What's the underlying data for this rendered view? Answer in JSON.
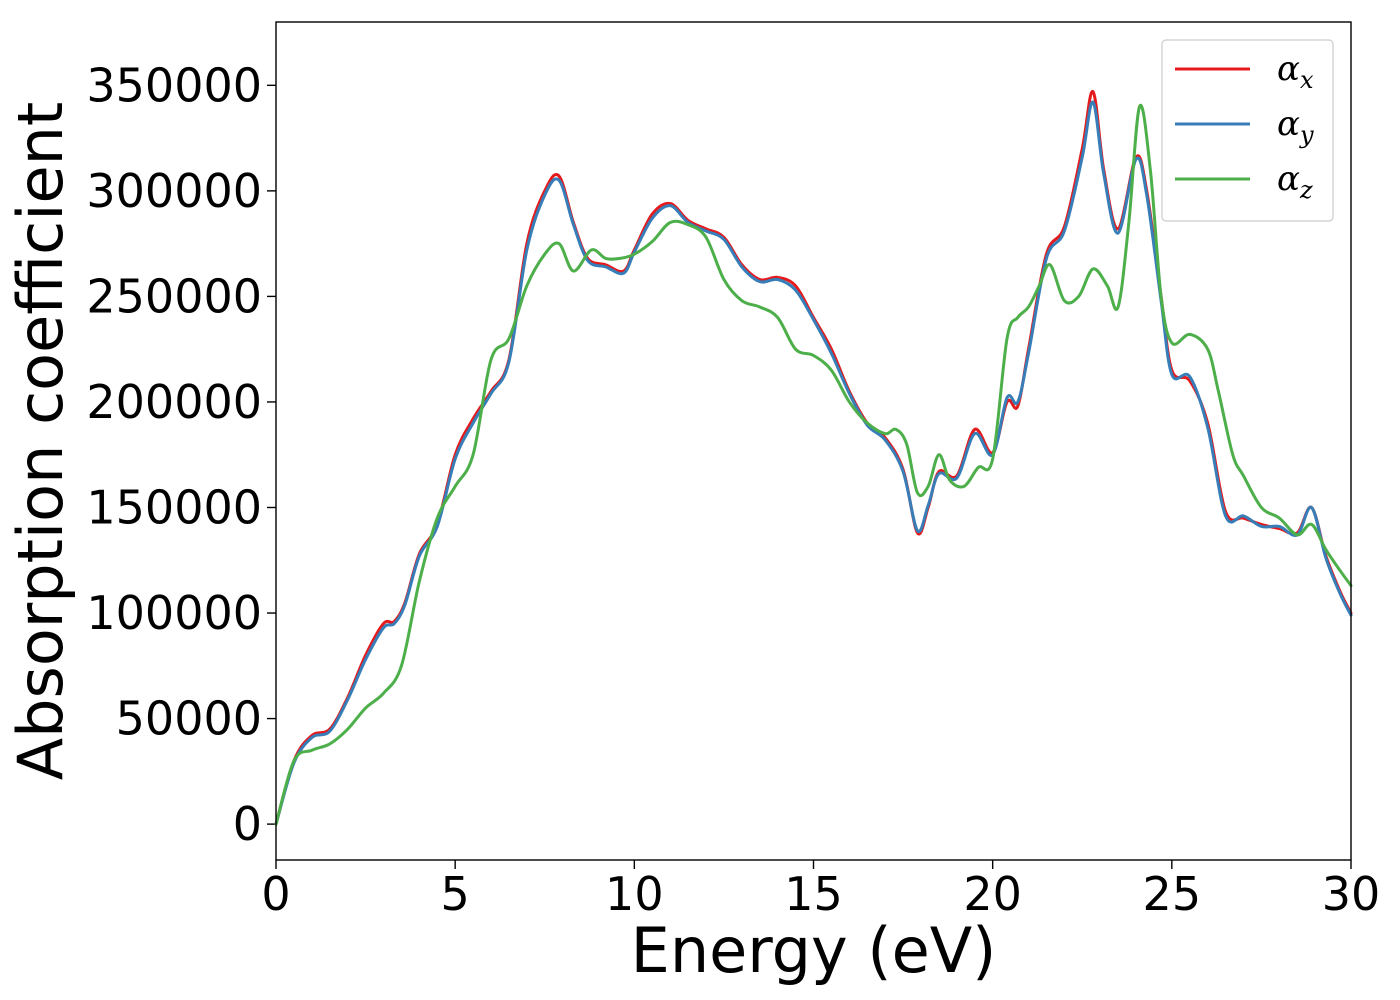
{
  "chart_data": {
    "type": "line",
    "title": "",
    "xlabel": "Energy (eV)",
    "ylabel": "Absorption coefficient",
    "xlim": [
      0,
      30
    ],
    "ylim": [
      -17000,
      380000
    ],
    "x_ticks": [
      0,
      5,
      10,
      15,
      20,
      25,
      30
    ],
    "y_ticks": [
      0,
      50000,
      100000,
      150000,
      200000,
      250000,
      300000,
      350000
    ],
    "grid": false,
    "legend_position": "upper right",
    "series": [
      {
        "name": "α",
        "subscript": "x",
        "color": "#e41a1c",
        "x": [
          0,
          0.5,
          1,
          1.5,
          2,
          2.5,
          3,
          3.3,
          3.6,
          4,
          4.5,
          5,
          5.5,
          6,
          6.5,
          7,
          7.5,
          7.9,
          8.3,
          8.7,
          9.2,
          9.7,
          10,
          10.5,
          11,
          11.5,
          12,
          12.5,
          13,
          13.5,
          14,
          14.5,
          15,
          15.5,
          16,
          16.5,
          17,
          17.5,
          17.9,
          18.2,
          18.5,
          19,
          19.5,
          20,
          20.4,
          20.7,
          21,
          21.5,
          22,
          22.5,
          22.8,
          23.1,
          23.5,
          24,
          24.3,
          24.7,
          25,
          25.5,
          26,
          26.5,
          27,
          27.5,
          28,
          28.5,
          28.9,
          29.3,
          29.7,
          30
        ],
        "values": [
          0,
          30000,
          42000,
          45000,
          60000,
          80000,
          95000,
          96000,
          105000,
          128000,
          142000,
          175000,
          192000,
          205000,
          220000,
          275000,
          300000,
          307000,
          285000,
          268000,
          265000,
          262000,
          272000,
          289000,
          294000,
          286000,
          282000,
          278000,
          265000,
          258000,
          259000,
          255000,
          240000,
          225000,
          205000,
          190000,
          183000,
          168000,
          138000,
          150000,
          167000,
          165000,
          187000,
          176000,
          200000,
          198000,
          225000,
          270000,
          283000,
          320000,
          347000,
          310000,
          282000,
          316000,
          300000,
          250000,
          215000,
          210000,
          190000,
          148000,
          145000,
          142000,
          140000,
          138000,
          150000,
          127000,
          110000,
          100000
        ]
      },
      {
        "name": "α",
        "subscript": "y",
        "color": "#377eb8",
        "x": [
          0,
          0.5,
          1,
          1.5,
          2,
          2.5,
          3,
          3.3,
          3.6,
          4,
          4.5,
          5,
          5.5,
          6,
          6.5,
          7,
          7.5,
          7.9,
          8.3,
          8.7,
          9.2,
          9.7,
          10,
          10.5,
          11,
          11.5,
          12,
          12.5,
          13,
          13.5,
          14,
          14.5,
          15,
          15.5,
          16,
          16.5,
          17,
          17.5,
          17.9,
          18.2,
          18.5,
          19,
          19.5,
          20,
          20.4,
          20.7,
          21,
          21.5,
          22,
          22.5,
          22.8,
          23.1,
          23.5,
          24,
          24.3,
          24.7,
          25,
          25.5,
          26,
          26.5,
          27,
          27.5,
          28,
          28.5,
          28.9,
          29.3,
          29.7,
          30
        ],
        "values": [
          0,
          29000,
          41000,
          44000,
          59000,
          78000,
          93000,
          95000,
          104000,
          127000,
          141000,
          173000,
          190000,
          204000,
          219000,
          272000,
          298000,
          305000,
          284000,
          267000,
          264000,
          261000,
          271000,
          287000,
          293000,
          285000,
          281000,
          277000,
          264000,
          257000,
          258000,
          253000,
          239000,
          223000,
          204000,
          189000,
          182000,
          167000,
          139000,
          151000,
          166000,
          164000,
          185000,
          175000,
          202000,
          200000,
          223000,
          268000,
          281000,
          316000,
          342000,
          308000,
          280000,
          315000,
          298000,
          248000,
          213000,
          212000,
          188000,
          146000,
          146000,
          141000,
          141000,
          137000,
          150000,
          126000,
          109000,
          99000
        ]
      },
      {
        "name": "α",
        "subscript": "z",
        "color": "#4daf4a",
        "x": [
          0,
          0.5,
          1,
          1.5,
          2,
          2.5,
          3,
          3.5,
          4,
          4.5,
          5,
          5.5,
          6,
          6.5,
          7,
          7.5,
          7.9,
          8.3,
          8.8,
          9.2,
          9.6,
          10,
          10.5,
          11,
          11.5,
          12,
          12.5,
          13,
          13.5,
          14,
          14.5,
          15,
          15.5,
          16,
          16.5,
          17,
          17.3,
          17.6,
          17.9,
          18.2,
          18.5,
          18.8,
          19.2,
          19.6,
          20,
          20.4,
          20.7,
          21,
          21.3,
          21.6,
          22,
          22.4,
          22.8,
          23.2,
          23.5,
          23.8,
          24.1,
          24.4,
          24.7,
          25,
          25.5,
          26,
          26.3,
          26.7,
          27,
          27.5,
          28,
          28.5,
          28.9,
          29.3,
          29.7,
          30
        ],
        "values": [
          0,
          30000,
          35000,
          38000,
          45000,
          55000,
          62000,
          75000,
          115000,
          145000,
          160000,
          175000,
          220000,
          230000,
          255000,
          270000,
          275000,
          262000,
          272000,
          268000,
          268000,
          270000,
          276000,
          285000,
          284000,
          278000,
          258000,
          248000,
          245000,
          240000,
          225000,
          222000,
          215000,
          200000,
          190000,
          185000,
          187000,
          180000,
          157000,
          160000,
          175000,
          163000,
          160000,
          169000,
          173000,
          230000,
          240000,
          245000,
          255000,
          265000,
          248000,
          250000,
          263000,
          255000,
          245000,
          285000,
          340000,
          310000,
          250000,
          228000,
          232000,
          225000,
          205000,
          175000,
          165000,
          150000,
          145000,
          137000,
          142000,
          130000,
          120000,
          113000
        ]
      }
    ]
  }
}
